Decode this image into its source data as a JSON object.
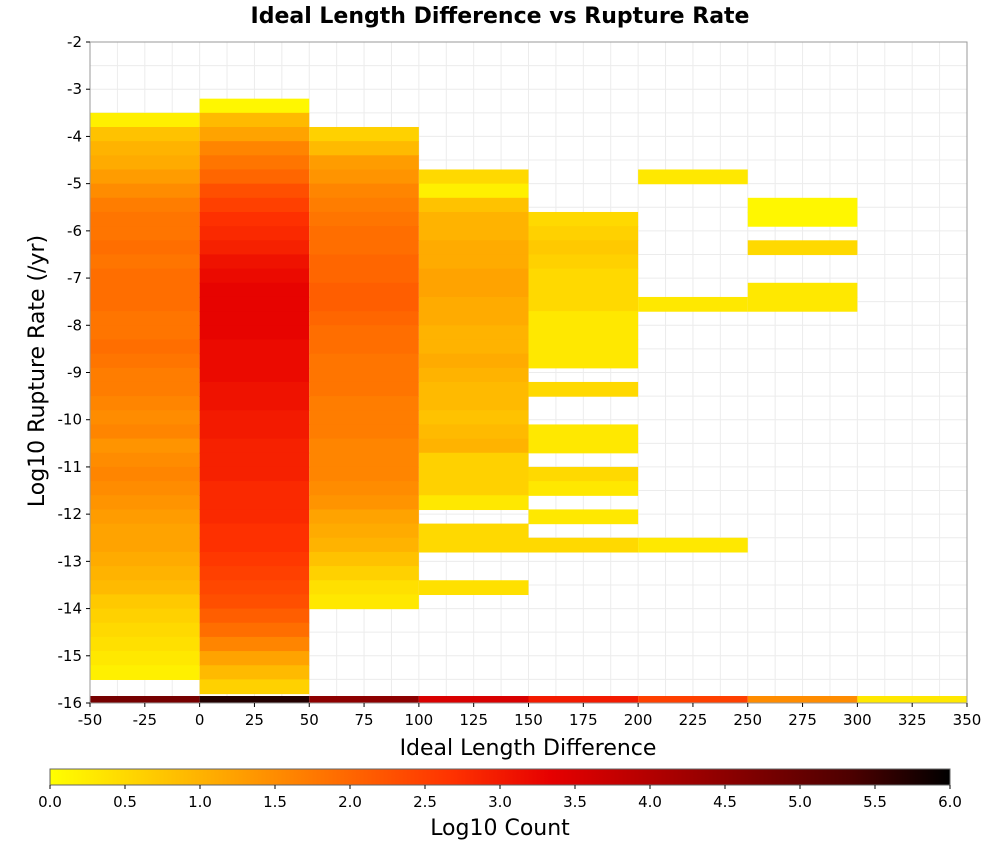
{
  "chart_data": {
    "type": "heatmap",
    "title": "Ideal Length Difference vs Rupture Rate",
    "xlabel": "Ideal Length Difference",
    "ylabel": "Log10 Rupture Rate (/yr)",
    "xlim": [
      -50,
      350
    ],
    "ylim": [
      -16,
      -2
    ],
    "x_ticks": [
      "-50",
      "-25",
      "0",
      "25",
      "50",
      "75",
      "100",
      "125",
      "150",
      "175",
      "200",
      "225",
      "250",
      "275",
      "300",
      "325",
      "350"
    ],
    "y_ticks": [
      "-2",
      "-3",
      "-4",
      "-5",
      "-6",
      "-7",
      "-8",
      "-9",
      "-10",
      "-11",
      "-12",
      "-13",
      "-14",
      "-15",
      "-16"
    ],
    "grid": true,
    "x_bin_width": 50,
    "y_bin_height": 0.3,
    "columns": [
      {
        "x_start": -50,
        "y_top": -3.5,
        "values": [
          0.2,
          0.8,
          1.0,
          1.1,
          1.3,
          1.5,
          1.7,
          1.8,
          1.8,
          1.9,
          1.8,
          1.9,
          1.9,
          1.9,
          1.8,
          1.8,
          1.9,
          1.8,
          1.7,
          1.7,
          1.6,
          1.5,
          1.6,
          1.4,
          1.5,
          1.6,
          1.5,
          1.4,
          1.3,
          1.2,
          1.2,
          1.1,
          1.0,
          0.9,
          0.7,
          0.6,
          0.5,
          0.4,
          0.3,
          0.2
        ]
      },
      {
        "x_start": 0,
        "y_top": -3.2,
        "values": [
          0.1,
          0.9,
          1.2,
          1.6,
          1.8,
          2.0,
          2.3,
          2.5,
          2.7,
          2.8,
          2.9,
          3.1,
          3.2,
          3.3,
          3.3,
          3.3,
          3.3,
          3.2,
          3.2,
          3.2,
          3.1,
          3.1,
          3.0,
          3.0,
          2.9,
          2.9,
          2.9,
          2.8,
          2.8,
          2.8,
          2.7,
          2.7,
          2.6,
          2.5,
          2.4,
          2.3,
          2.1,
          1.9,
          1.6,
          1.2,
          0.9,
          0.6
        ]
      },
      {
        "x_start": 50,
        "y_top": -3.8,
        "values": [
          0.6,
          0.9,
          1.3,
          1.4,
          1.6,
          1.7,
          1.8,
          1.9,
          1.9,
          2.0,
          2.0,
          2.1,
          2.1,
          2.0,
          1.9,
          1.9,
          1.8,
          1.8,
          1.8,
          1.7,
          1.7,
          1.7,
          1.6,
          1.6,
          1.6,
          1.5,
          1.4,
          1.2,
          1.1,
          1.0,
          0.8,
          0.6,
          0.4,
          0.3
        ]
      },
      {
        "x_start": 100,
        "y_top": -4.7,
        "values": [
          0.5,
          0.2,
          0.8,
          1.0,
          1.0,
          1.1,
          1.1,
          1.2,
          1.2,
          1.1,
          1.1,
          1.0,
          1.0,
          1.1,
          1.0,
          0.9,
          0.9,
          0.8,
          0.9,
          1.0,
          0.6,
          0.6,
          0.6,
          0.3,
          null,
          0.5,
          0.5,
          null,
          null,
          0.4,
          null
        ]
      },
      {
        "x_start": 150,
        "y_top": -5.6,
        "values": [
          0.5,
          0.6,
          0.7,
          0.6,
          0.5,
          0.5,
          0.5,
          0.3,
          0.3,
          0.3,
          0.3,
          null,
          0.5,
          null,
          null,
          0.3,
          0.3,
          null,
          0.5,
          0.3,
          null,
          0.3,
          null,
          0.5
        ]
      },
      {
        "x_start": 200,
        "y_top": -4.7,
        "values": [
          0.3,
          null,
          null,
          null,
          null,
          null,
          null,
          null,
          null,
          0.3,
          null,
          null,
          null,
          null,
          null,
          null,
          null,
          null,
          null,
          null,
          null,
          null,
          null,
          null,
          null,
          null,
          0.3
        ]
      },
      {
        "x_start": 250,
        "y_top": -5.3,
        "values": [
          0.1,
          0.1,
          null,
          0.5,
          null,
          null,
          0.3,
          0.3
        ]
      }
    ],
    "bottom_row": {
      "y": -16,
      "values": [
        4.8,
        5.7,
        4.5,
        3.5,
        3.0,
        2.5,
        1.5,
        0.3
      ]
    },
    "colorbar": {
      "label": "Log10 Count",
      "min": 0.0,
      "max": 6.0,
      "ticks": [
        "0.0",
        "0.5",
        "1.0",
        "1.5",
        "2.0",
        "2.5",
        "3.0",
        "3.5",
        "4.0",
        "4.5",
        "5.0",
        "5.5",
        "6.0"
      ],
      "stops": [
        "#ffff00",
        "#ffcc00",
        "#ff9900",
        "#ff6600",
        "#ff3300",
        "#e60000",
        "#b30000",
        "#800000",
        "#4d0000",
        "#000000"
      ]
    }
  }
}
